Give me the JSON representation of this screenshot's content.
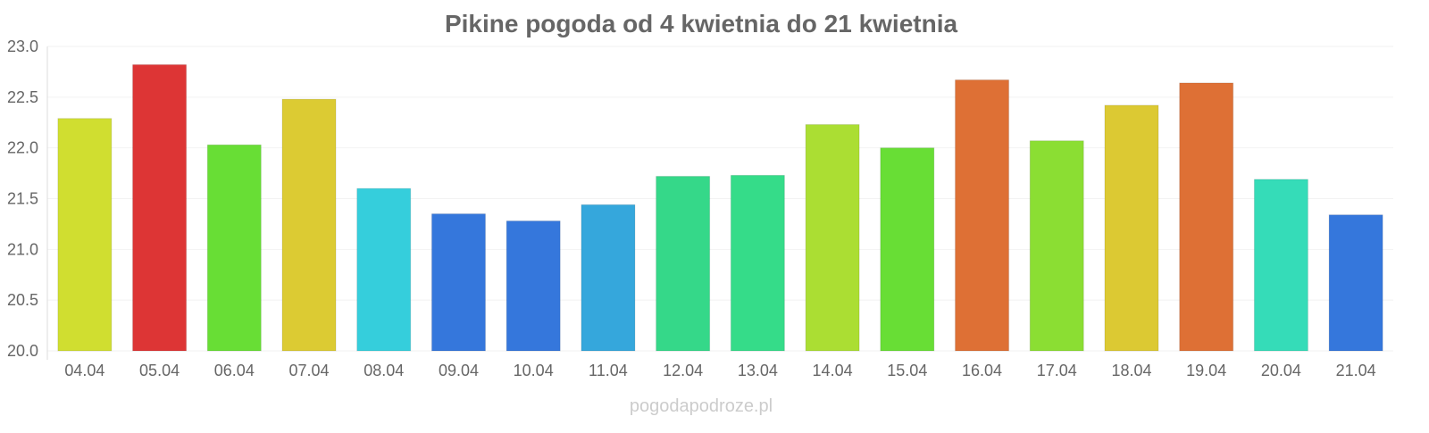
{
  "chart_data": {
    "type": "bar",
    "title": "Pikine pogoda od 4 kwietnia do 21 kwietnia",
    "xlabel": "",
    "ylabel": "",
    "ylim": [
      20.0,
      23.0
    ],
    "yticks": [
      "20.0",
      "20.5",
      "21.0",
      "21.5",
      "22.0",
      "22.5",
      "23.0"
    ],
    "grid": true,
    "categories": [
      "04.04",
      "05.04",
      "06.04",
      "07.04",
      "08.04",
      "09.04",
      "10.04",
      "11.04",
      "12.04",
      "13.04",
      "14.04",
      "15.04",
      "16.04",
      "17.04",
      "18.04",
      "19.04",
      "20.04",
      "21.04"
    ],
    "values": [
      22.29,
      22.82,
      22.03,
      22.48,
      21.6,
      21.35,
      21.28,
      21.44,
      21.72,
      21.73,
      22.23,
      22.0,
      22.67,
      22.07,
      22.42,
      22.64,
      21.69,
      21.34
    ],
    "colors": [
      "#d0de30",
      "#dd3535",
      "#68de35",
      "#dccb33",
      "#35cedc",
      "#3577dc",
      "#3577dc",
      "#35a7dc",
      "#35d889",
      "#35dc89",
      "#abde33",
      "#68de35",
      "#de7035",
      "#8bde33",
      "#dcc933",
      "#de7035",
      "#35dcb8",
      "#3577dc"
    ]
  },
  "watermark": "pogodapodroze.pl"
}
